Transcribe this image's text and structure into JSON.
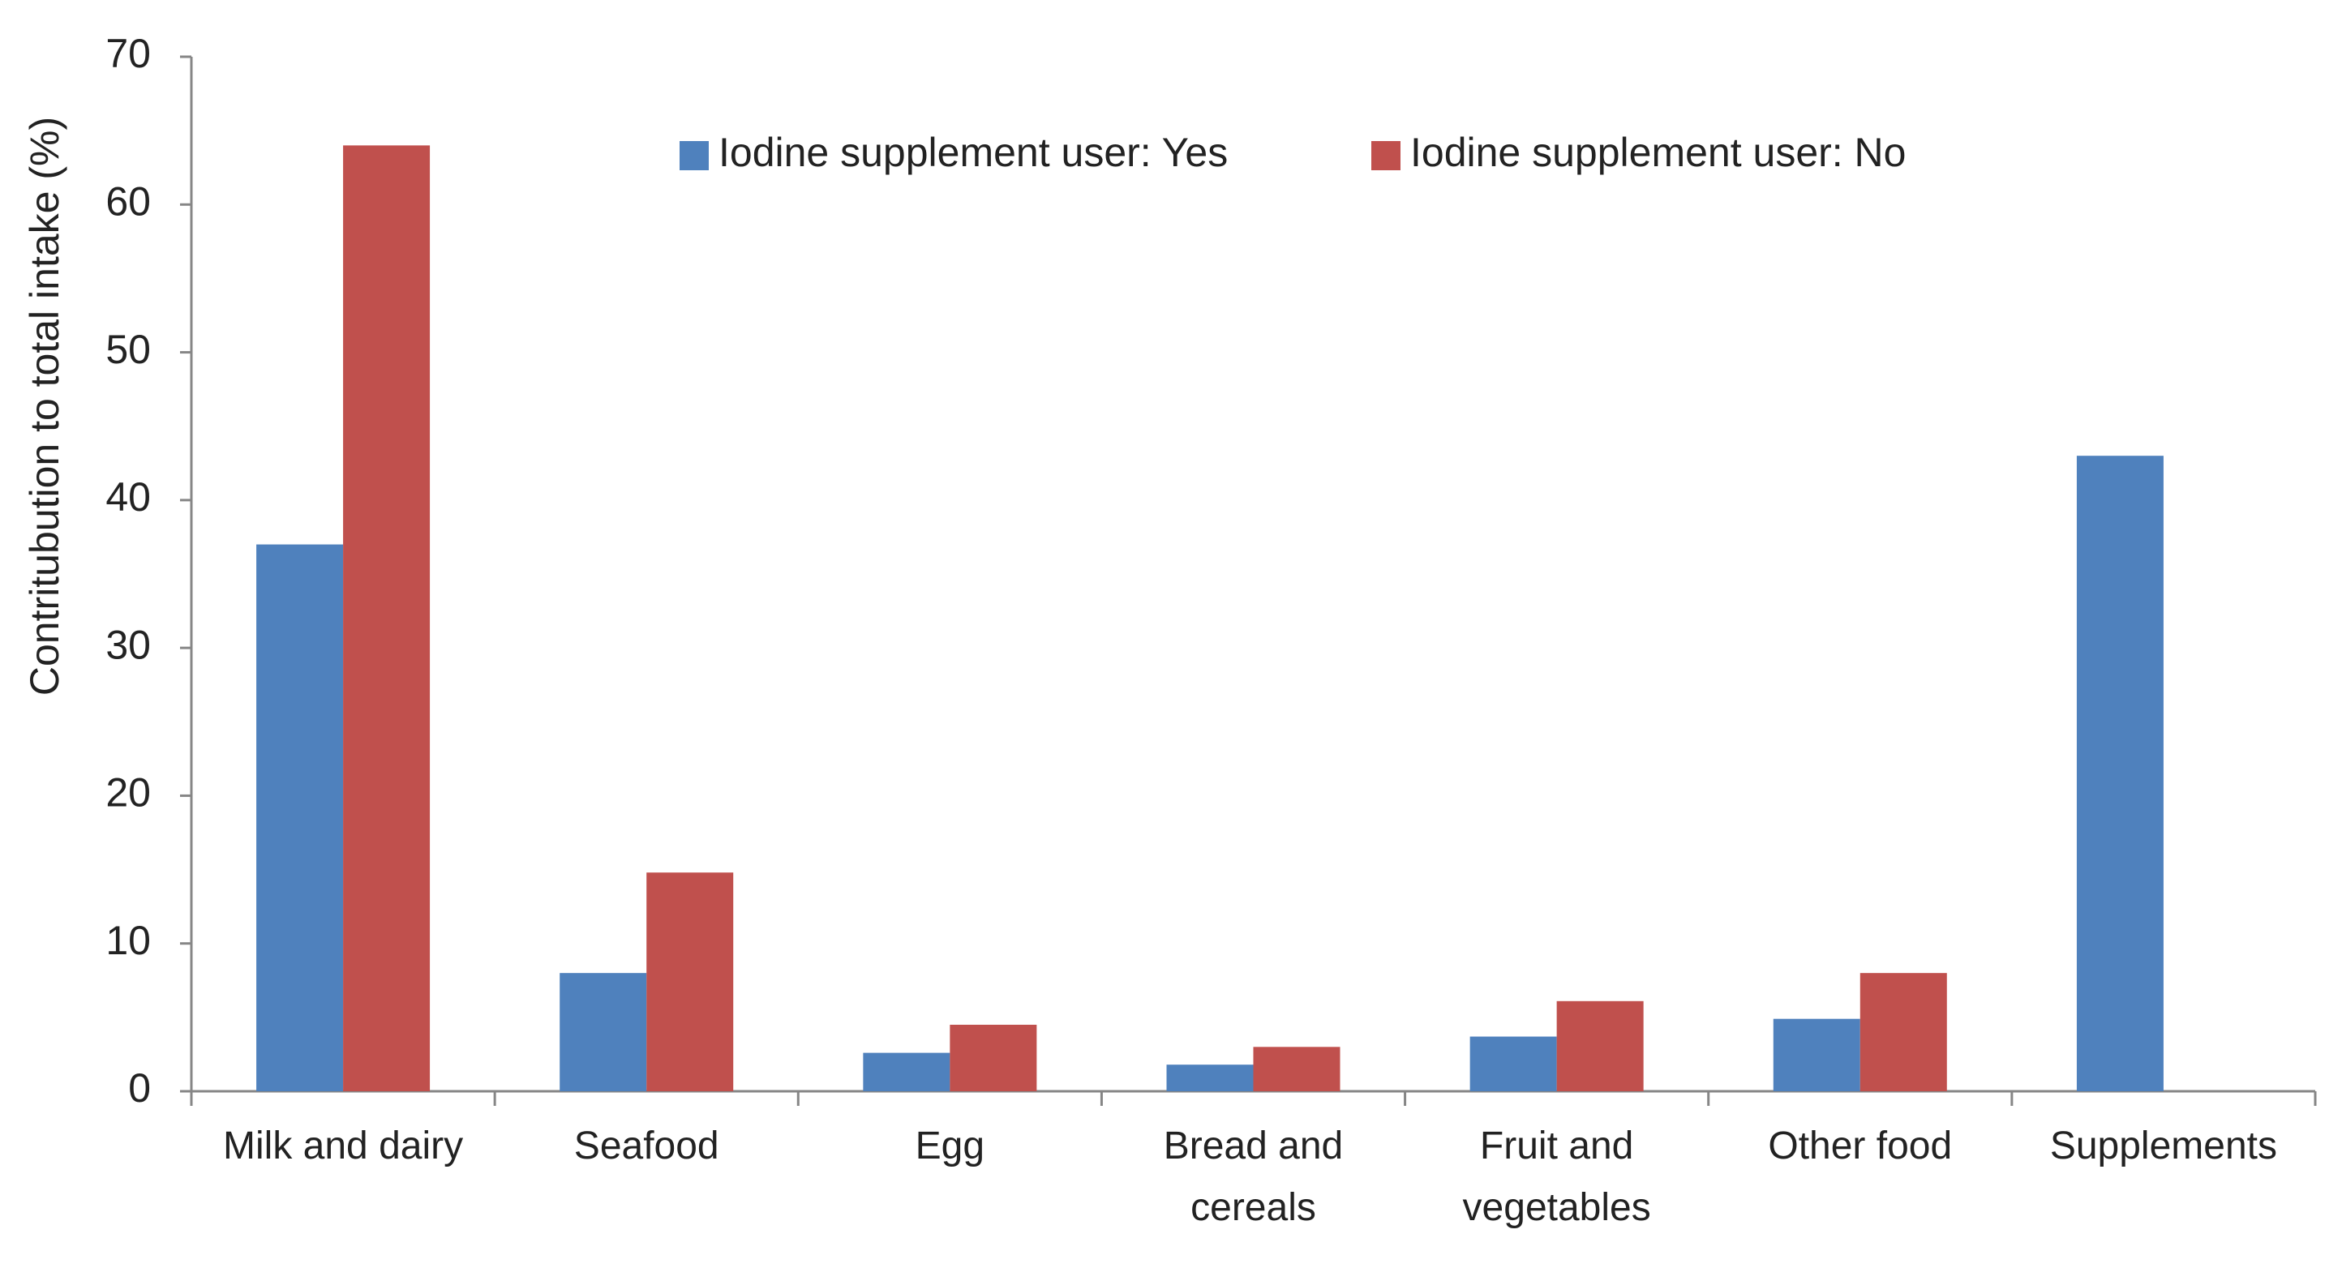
{
  "chart_data": {
    "type": "bar",
    "y_label": "Contritubution to total intake (%)",
    "categories": [
      "Milk and dairy",
      "Seafood",
      "Egg",
      "Bread and cereals",
      "Fruit and vegetables",
      "Other food",
      "Supplements"
    ],
    "series": [
      {
        "name": "Iodine supplement user: Yes",
        "color": "#4f81bd",
        "values": [
          37,
          8,
          2.6,
          1.8,
          3.7,
          4.9,
          43
        ]
      },
      {
        "name": "Iodine supplement user: No",
        "color": "#c0504d",
        "values": [
          64,
          14.8,
          4.5,
          3,
          6.1,
          8,
          null
        ]
      }
    ],
    "ylim": [
      0,
      70
    ],
    "yticks": [
      0,
      10,
      20,
      30,
      40,
      50,
      60,
      70
    ],
    "grid": false,
    "legend": "top"
  }
}
